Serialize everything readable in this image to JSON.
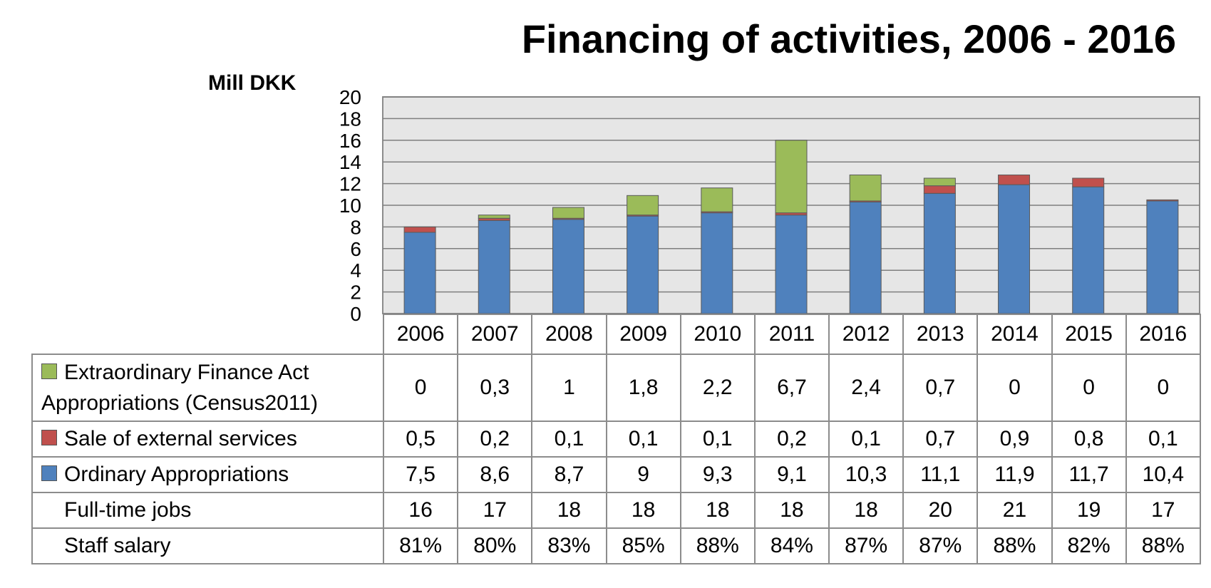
{
  "chart_data": {
    "type": "bar",
    "stacked": true,
    "title": "Financing of activities, 2006 - 2016",
    "ylabel": "Mill DKK",
    "ylim": [
      0,
      20
    ],
    "yticks": [
      "0",
      "2",
      "4",
      "6",
      "8",
      "10",
      "12",
      "14",
      "16",
      "18",
      "20"
    ],
    "grid": true,
    "categories": [
      "2006",
      "2007",
      "2008",
      "2009",
      "2010",
      "2011",
      "2012",
      "2013",
      "2014",
      "2015",
      "2016"
    ],
    "series": [
      {
        "name": "Ordinary Appropriations",
        "color": "#4f81bd",
        "values": [
          7.5,
          8.6,
          8.7,
          9,
          9.3,
          9.1,
          10.3,
          11.1,
          11.9,
          11.7,
          10.4
        ],
        "labels": [
          "7,5",
          "8,6",
          "8,7",
          "9",
          "9,3",
          "9,1",
          "10,3",
          "11,1",
          "11,9",
          "11,7",
          "10,4"
        ]
      },
      {
        "name": "Sale of external services",
        "color": "#c0504d",
        "values": [
          0.5,
          0.2,
          0.1,
          0.1,
          0.1,
          0.2,
          0.1,
          0.7,
          0.9,
          0.8,
          0.1
        ],
        "labels": [
          "0,5",
          "0,2",
          "0,1",
          "0,1",
          "0,1",
          "0,2",
          "0,1",
          "0,7",
          "0,9",
          "0,8",
          "0,1"
        ]
      },
      {
        "name": "Extraordinary Finance Act Appropriations (Census2011)",
        "color": "#9bbb59",
        "values": [
          0,
          0.3,
          1,
          1.8,
          2.2,
          6.7,
          2.4,
          0.7,
          0,
          0,
          0
        ],
        "labels": [
          "0",
          "0,3",
          "1",
          "1,8",
          "2,2",
          "6,7",
          "2,4",
          "0,7",
          "0",
          "0",
          "0"
        ]
      }
    ],
    "extra_rows": [
      {
        "name": "Full-time jobs",
        "values": [
          "16",
          "17",
          "18",
          "18",
          "18",
          "18",
          "18",
          "20",
          "21",
          "19",
          "17"
        ]
      },
      {
        "name": "Staff salary",
        "values": [
          "81%",
          "80%",
          "83%",
          "85%",
          "88%",
          "84%",
          "87%",
          "87%",
          "88%",
          "82%",
          "88%"
        ]
      }
    ]
  },
  "colors": {
    "plot_background": "#e6e6e6",
    "grid": "#7f7f7f",
    "border": "#8c8c8c"
  }
}
